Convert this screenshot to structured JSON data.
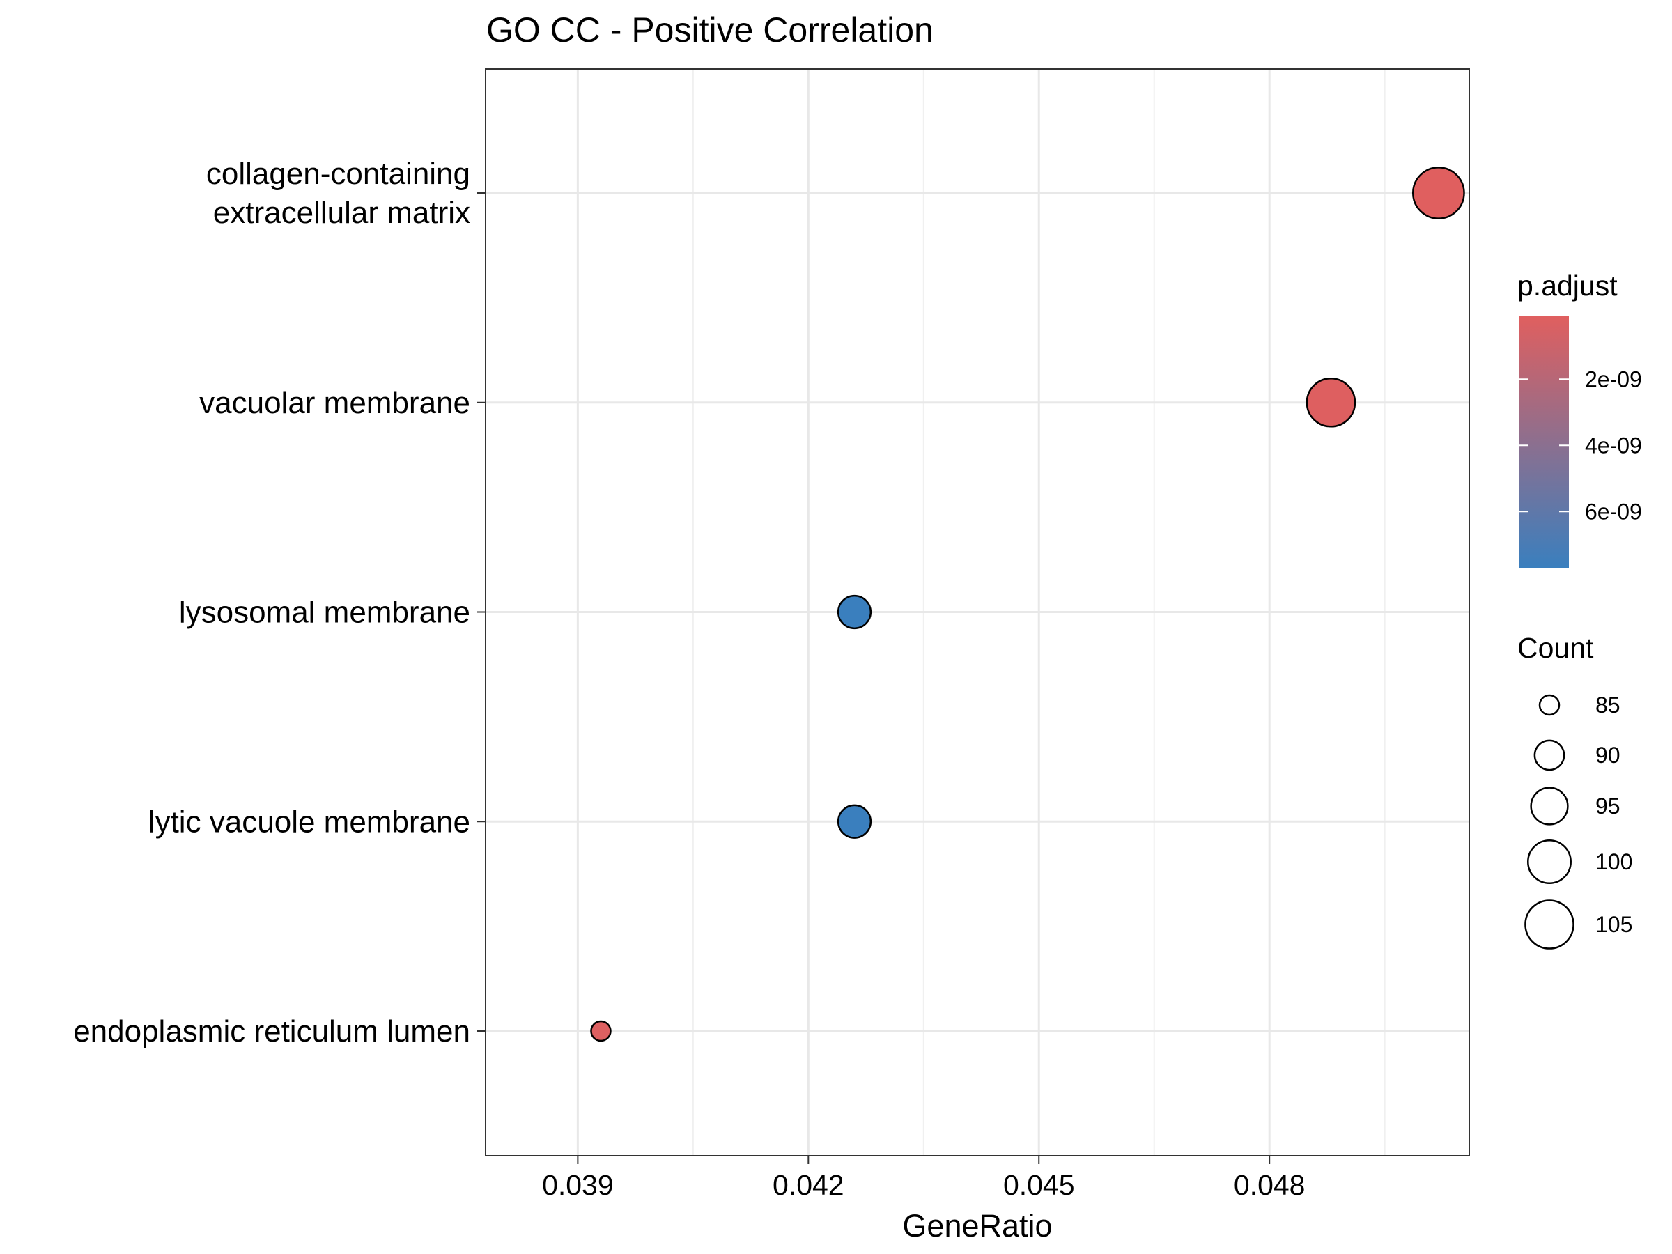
{
  "chart_data": {
    "type": "scatter",
    "title": "GO CC - Positive Correlation",
    "xlabel": "GeneRatio",
    "ylabel": "",
    "xlim": [
      0.0378,
      0.0506
    ],
    "x_ticks": [
      0.039,
      0.042,
      0.045,
      0.048
    ],
    "x_tick_labels": [
      "0.039",
      "0.042",
      "0.045",
      "0.048"
    ],
    "x_minor_ticks": [
      0.0405,
      0.0435,
      0.0465,
      0.0495
    ],
    "grid": true,
    "categories": [
      "collagen-containing\nextracellular matrix",
      "vacuolar membrane",
      "lysosomal membrane",
      "lytic vacuole membrane",
      "endoplasmic reticulum lumen"
    ],
    "points": [
      {
        "term": "collagen-containing\nextracellular matrix",
        "gene_ratio": 0.0502,
        "count": 108,
        "p_adjust": 1e-10
      },
      {
        "term": "vacuolar membrane",
        "gene_ratio": 0.0488,
        "count": 105,
        "p_adjust": 2e-10
      },
      {
        "term": "lysosomal membrane",
        "gene_ratio": 0.0426,
        "count": 92,
        "p_adjust": 7.7e-09
      },
      {
        "term": "lytic vacuole membrane",
        "gene_ratio": 0.0426,
        "count": 92,
        "p_adjust": 7.7e-09
      },
      {
        "term": "endoplasmic reticulum lumen",
        "gene_ratio": 0.0393,
        "count": 85,
        "p_adjust": 2.5e-10
      }
    ],
    "legend_color": {
      "title": "p.adjust",
      "placement": "right",
      "range": [
        1e-10,
        7.7e-09
      ],
      "low_color": "#e05f5f",
      "high_color": "#3a7fbe",
      "breaks": [
        2e-09,
        4e-09,
        6e-09
      ],
      "break_labels": [
        "2e-09",
        "4e-09",
        "6e-09"
      ]
    },
    "legend_size": {
      "title": "Count",
      "placement": "right",
      "breaks": [
        85,
        90,
        95,
        100,
        105
      ],
      "break_labels": [
        "85",
        "90",
        "95",
        "100",
        "105"
      ]
    }
  }
}
